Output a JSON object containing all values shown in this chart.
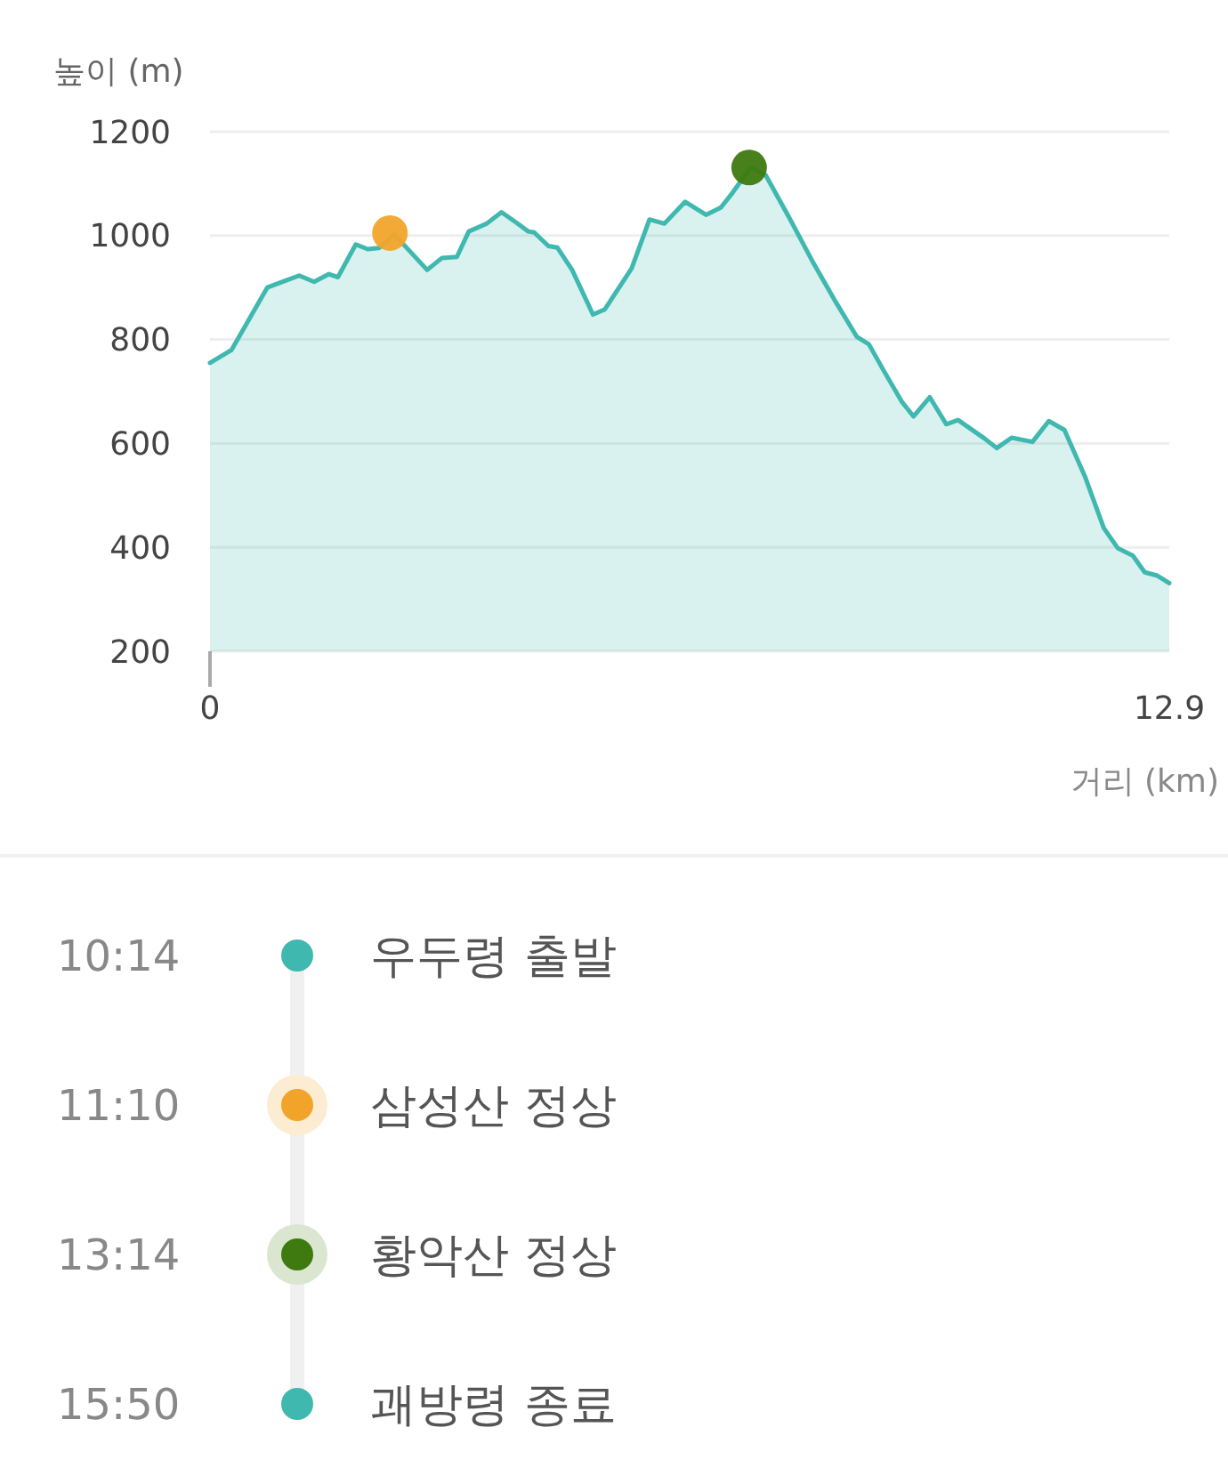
{
  "chart_data": [
    {
      "type": "area",
      "xlabel": "거리 (km)",
      "ylabel": "높이 (m)",
      "xlim": [
        0,
        12.9
      ],
      "xticks": [
        0,
        12.9
      ],
      "ylim": [
        200,
        1200
      ],
      "yticks": [
        200,
        400,
        600,
        800,
        1000,
        1200
      ],
      "grid": "y",
      "series": [
        {
          "type": "area",
          "color": "#3fb8b0",
          "x": [
            0,
            0.29,
            0.77,
            1.01,
            1.2,
            1.4,
            1.6,
            1.72,
            1.96,
            2.12,
            2.27,
            2.48,
            2.92,
            3.12,
            3.32,
            3.48,
            3.72,
            3.92,
            4.12,
            4.28,
            4.36,
            4.55,
            4.67,
            4.87,
            5.15,
            5.31,
            5.67,
            5.91,
            6.11,
            6.39,
            6.67,
            6.87,
            7.03,
            7.27,
            7.47,
            7.78,
            8.1,
            8.42,
            8.7,
            8.86,
            9.06,
            9.3,
            9.46,
            9.68,
            9.9,
            10.06,
            10.42,
            10.58,
            10.78,
            11.06,
            11.28,
            11.49,
            11.77,
            12.02,
            12.21,
            12.41,
            12.57,
            12.73,
            12.9
          ],
          "values": [
            755,
            780,
            900,
            913,
            923,
            911,
            926,
            920,
            983,
            974,
            976,
            1002,
            934,
            957,
            959,
            1008,
            1023,
            1045,
            1025,
            1008,
            1006,
            980,
            977,
            934,
            848,
            858,
            937,
            1031,
            1023,
            1065,
            1040,
            1054,
            1083,
            1131,
            1117,
            1037,
            951,
            871,
            805,
            791,
            740,
            681,
            652,
            689,
            637,
            645,
            609,
            591,
            611,
            603,
            643,
            626,
            535,
            437,
            398,
            384,
            352,
            346,
            331
          ]
        },
        {
          "type": "scatter",
          "color": "#f2a42a",
          "x": [
            2.42
          ],
          "values": [
            1005
          ]
        },
        {
          "type": "scatter",
          "color": "#3e7a0f",
          "x": [
            7.25
          ],
          "values": [
            1131
          ]
        }
      ]
    },
    {
      "type": "other",
      "annotations": [
        "10:14",
        "우두령 출발",
        "11:10",
        "삼성산 정상",
        "13:14",
        "황악산 정상",
        "15:50",
        "괘방령 종료"
      ]
    }
  ]
}
